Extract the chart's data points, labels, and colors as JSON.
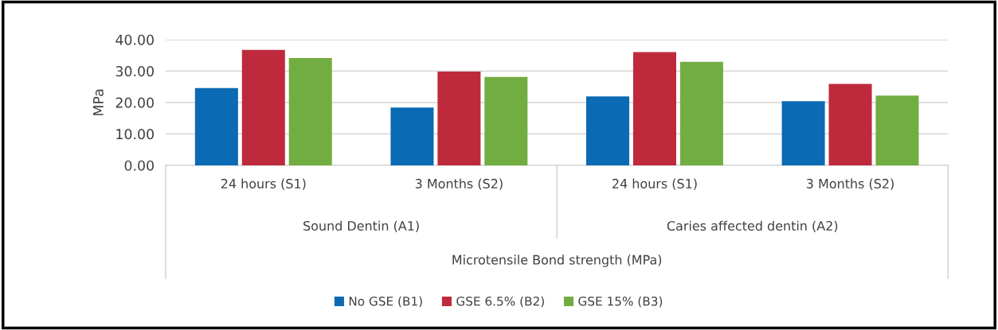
{
  "chart_data": {
    "type": "bar",
    "ylabel": "MPa",
    "categories": [
      "24 hours (S1)",
      "3 Months (S2)",
      "24 hours (S1)",
      "3 Months (S2)"
    ],
    "series": [
      {
        "name": "No GSE (B1)",
        "color": "#0a6ab4",
        "values": [
          24.6,
          18.4,
          21.9,
          20.4
        ]
      },
      {
        "name": "GSE 6.5% (B2)",
        "color": "#be2a3c",
        "values": [
          36.7,
          29.8,
          36.0,
          25.9
        ]
      },
      {
        "name": "GSE 15% (B3)",
        "color": "#72ad41",
        "values": [
          34.1,
          28.1,
          32.9,
          22.2
        ]
      }
    ],
    "annotations": [
      "Sound Dentin (A1)",
      "Caries affected dentin (A2)",
      "Microtensile Bond strength (MPa)"
    ],
    "ylim": [
      0,
      40
    ],
    "yticks": [
      {
        "value": 0,
        "label": "0.00"
      },
      {
        "value": 10,
        "label": "10.00"
      },
      {
        "value": 20,
        "label": "20.00"
      },
      {
        "value": 30,
        "label": "30.00"
      },
      {
        "value": 40,
        "label": "40.00"
      }
    ],
    "grid": "y",
    "legend": "bottom"
  }
}
